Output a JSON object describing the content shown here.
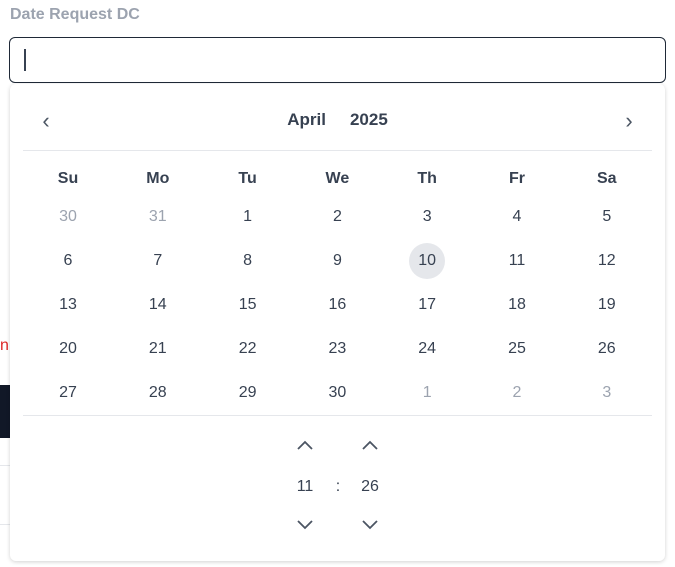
{
  "field": {
    "label": "Date Request DC",
    "value": ""
  },
  "calendar": {
    "month": "April",
    "year": "2025",
    "weekdays": [
      "Su",
      "Mo",
      "Tu",
      "We",
      "Th",
      "Fr",
      "Sa"
    ],
    "weeks": [
      [
        "30",
        "31",
        "1",
        "2",
        "3",
        "4",
        "5"
      ],
      [
        "6",
        "7",
        "8",
        "9",
        "10",
        "11",
        "12"
      ],
      [
        "13",
        "14",
        "15",
        "16",
        "17",
        "18",
        "19"
      ],
      [
        "20",
        "21",
        "22",
        "23",
        "24",
        "25",
        "26"
      ],
      [
        "27",
        "28",
        "29",
        "30",
        "1",
        "2",
        "3"
      ]
    ],
    "outside_month": [
      [
        0,
        0
      ],
      [
        0,
        1
      ],
      [
        4,
        4
      ],
      [
        4,
        5
      ],
      [
        4,
        6
      ]
    ],
    "highlighted": [
      1,
      4
    ],
    "icons": {
      "prev": "chevron-left-icon",
      "next": "chevron-right-icon"
    }
  },
  "time": {
    "hour": "11",
    "separator": ":",
    "minute": "26"
  }
}
